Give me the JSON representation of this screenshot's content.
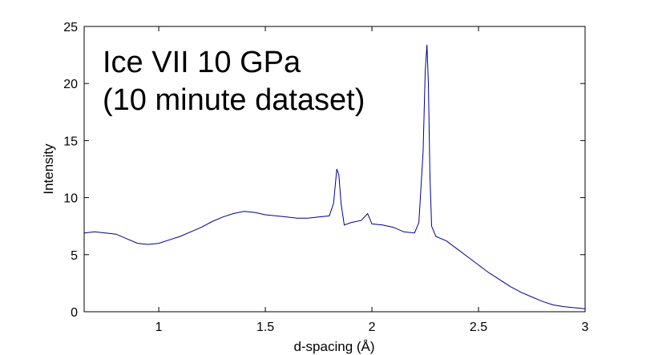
{
  "chart_data": {
    "type": "line",
    "title": "",
    "xlabel": "d-spacing (Å)",
    "ylabel": "Intensity",
    "xlim": [
      0.65,
      3.0
    ],
    "ylim": [
      0,
      25
    ],
    "grid": false,
    "legend": "none",
    "x_ticks": [
      1,
      1.5,
      2,
      2.5,
      3
    ],
    "x_tick_labels": [
      "1",
      "1.5",
      "2",
      "2.5",
      "3"
    ],
    "y_ticks": [
      0,
      5,
      10,
      15,
      20,
      25
    ],
    "y_tick_labels": [
      "0",
      "5",
      "10",
      "15",
      "20",
      "25"
    ],
    "annotation": [
      "Ice VII 10 GPa",
      "(10 minute dataset)"
    ],
    "series_color": "#00008b",
    "series": [
      {
        "x": [
          0.65,
          0.7,
          0.75,
          0.8,
          0.85,
          0.9,
          0.95,
          1.0,
          1.05,
          1.1,
          1.15,
          1.2,
          1.25,
          1.3,
          1.35,
          1.4,
          1.45,
          1.5,
          1.55,
          1.6,
          1.65,
          1.7,
          1.75,
          1.8,
          1.82,
          1.835,
          1.845,
          1.855,
          1.87,
          1.9,
          1.95,
          1.98,
          2.0,
          2.05,
          2.1,
          2.15,
          2.2,
          2.22,
          2.24,
          2.25,
          2.258,
          2.265,
          2.272,
          2.28,
          2.3,
          2.35,
          2.4,
          2.45,
          2.5,
          2.55,
          2.6,
          2.65,
          2.7,
          2.75,
          2.8,
          2.85,
          2.9,
          2.95,
          2.98,
          3.0
        ],
        "y": [
          6.9,
          7.0,
          6.9,
          6.8,
          6.4,
          6.0,
          5.9,
          6.0,
          6.3,
          6.6,
          7.0,
          7.4,
          7.9,
          8.3,
          8.6,
          8.8,
          8.7,
          8.5,
          8.4,
          8.3,
          8.2,
          8.2,
          8.3,
          8.4,
          9.5,
          12.5,
          12.0,
          9.5,
          7.6,
          7.8,
          8.0,
          8.6,
          7.7,
          7.6,
          7.4,
          7.0,
          6.9,
          7.8,
          14.0,
          21.0,
          23.4,
          20.0,
          12.0,
          7.5,
          6.6,
          6.2,
          5.5,
          4.8,
          4.1,
          3.4,
          2.8,
          2.2,
          1.7,
          1.3,
          0.9,
          0.6,
          0.45,
          0.35,
          0.3,
          0.25
        ]
      }
    ]
  }
}
